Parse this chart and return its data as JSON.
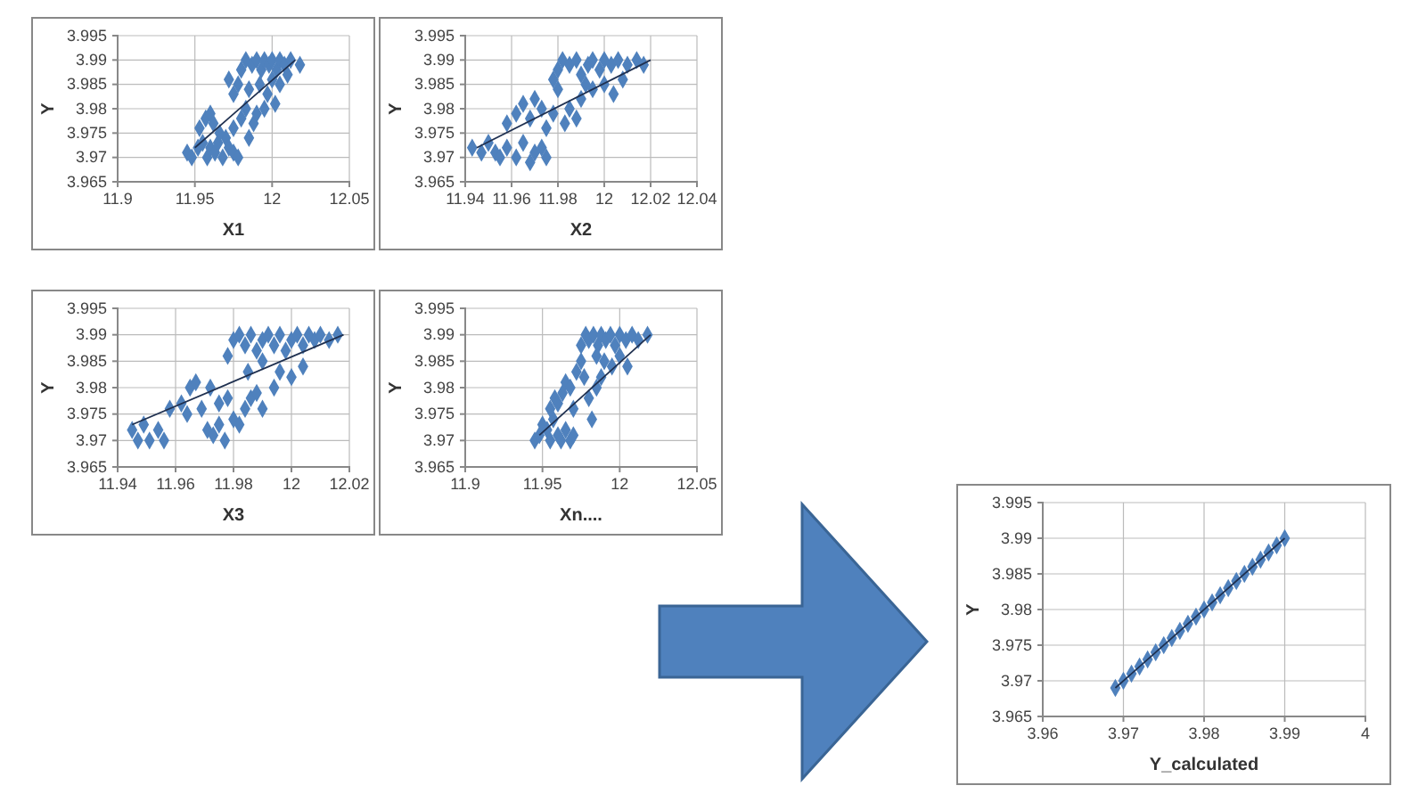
{
  "chart_data": [
    {
      "type": "scatter",
      "xlabel": "X1",
      "ylabel": "Y",
      "xlim": [
        11.9,
        12.05
      ],
      "xticks": [
        11.9,
        11.95,
        12,
        12.05
      ],
      "ylim": [
        3.965,
        3.995
      ],
      "yticks": [
        3.965,
        3.97,
        3.975,
        3.98,
        3.985,
        3.99,
        3.995
      ],
      "grid": true,
      "marker": "diamond",
      "series": [
        {
          "color": "#4f81bd",
          "x": [
            11.945,
            11.948,
            11.952,
            11.955,
            11.958,
            11.96,
            11.963,
            11.965,
            11.968,
            11.97,
            11.972,
            11.975,
            11.978,
            11.953,
            11.957,
            11.96,
            11.962,
            11.966,
            11.975,
            11.98,
            11.985,
            11.988,
            11.983,
            11.99,
            11.975,
            11.978,
            11.972,
            11.98,
            11.983,
            11.987,
            11.99,
            11.993,
            11.995,
            11.998,
            12,
            12.003,
            12.005,
            12.008,
            12.012,
            12.018,
            11.985,
            11.992,
            11.997,
            12.002,
            12.005,
            11.995,
            12,
            12.01
          ],
          "values": [
            3.971,
            3.97,
            3.972,
            3.973,
            3.97,
            3.972,
            3.971,
            3.973,
            3.97,
            3.974,
            3.972,
            3.971,
            3.97,
            3.976,
            3.978,
            3.979,
            3.977,
            3.975,
            3.976,
            3.978,
            3.974,
            3.977,
            3.98,
            3.979,
            3.983,
            3.985,
            3.986,
            3.988,
            3.99,
            3.989,
            3.99,
            3.988,
            3.99,
            3.989,
            3.99,
            3.988,
            3.99,
            3.989,
            3.99,
            3.989,
            3.984,
            3.985,
            3.983,
            3.981,
            3.985,
            3.98,
            3.986,
            3.987
          ]
        },
        {
          "type": "line",
          "color": "#1f3050",
          "marker": "none",
          "x": [
            11.95,
            12.015
          ],
          "values": [
            3.972,
            3.99
          ]
        }
      ]
    },
    {
      "type": "scatter",
      "xlabel": "X2",
      "ylabel": "Y",
      "xlim": [
        11.94,
        12.04
      ],
      "xticks": [
        11.94,
        11.96,
        11.98,
        12,
        12.02,
        12.04
      ],
      "ylim": [
        3.965,
        3.995
      ],
      "yticks": [
        3.965,
        3.97,
        3.975,
        3.98,
        3.985,
        3.99,
        3.995
      ],
      "grid": true,
      "marker": "diamond",
      "series": [
        {
          "color": "#4f81bd",
          "x": [
            11.943,
            11.947,
            11.95,
            11.953,
            11.955,
            11.958,
            11.962,
            11.965,
            11.968,
            11.97,
            11.973,
            11.975,
            11.958,
            11.962,
            11.965,
            11.968,
            11.97,
            11.973,
            11.975,
            11.978,
            11.98,
            11.983,
            11.985,
            11.988,
            11.99,
            11.978,
            11.98,
            11.982,
            11.985,
            11.988,
            11.99,
            11.993,
            11.995,
            11.998,
            12,
            12.003,
            12.006,
            12.01,
            12.014,
            12.017,
            11.995,
            12,
            12.004,
            12.008,
            11.992
          ],
          "values": [
            3.972,
            3.971,
            3.973,
            3.971,
            3.97,
            3.972,
            3.97,
            3.973,
            3.969,
            3.971,
            3.972,
            3.97,
            3.977,
            3.979,
            3.981,
            3.978,
            3.982,
            3.98,
            3.976,
            3.979,
            3.984,
            3.977,
            3.98,
            3.978,
            3.982,
            3.986,
            3.988,
            3.99,
            3.989,
            3.99,
            3.987,
            3.989,
            3.99,
            3.988,
            3.99,
            3.989,
            3.99,
            3.989,
            3.99,
            3.989,
            3.984,
            3.985,
            3.983,
            3.986,
            3.985
          ]
        },
        {
          "type": "line",
          "color": "#1f3050",
          "marker": "none",
          "x": [
            11.945,
            12.02
          ],
          "values": [
            3.972,
            3.99
          ]
        }
      ]
    },
    {
      "type": "scatter",
      "xlabel": "X3",
      "ylabel": "Y",
      "xlim": [
        11.94,
        12.02
      ],
      "xticks": [
        11.94,
        11.96,
        11.98,
        12,
        12.02
      ],
      "ylim": [
        3.965,
        3.995
      ],
      "yticks": [
        3.965,
        3.97,
        3.975,
        3.98,
        3.985,
        3.99,
        3.995
      ],
      "grid": true,
      "marker": "diamond",
      "series": [
        {
          "color": "#4f81bd",
          "x": [
            11.945,
            11.947,
            11.949,
            11.951,
            11.954,
            11.956,
            11.958,
            11.962,
            11.964,
            11.965,
            11.967,
            11.969,
            11.971,
            11.973,
            11.975,
            11.977,
            11.972,
            11.975,
            11.978,
            11.98,
            11.982,
            11.984,
            11.986,
            11.988,
            11.99,
            11.978,
            11.98,
            11.982,
            11.984,
            11.986,
            11.988,
            11.99,
            11.992,
            11.994,
            11.996,
            11.998,
            12,
            12.002,
            12.004,
            12.006,
            12.008,
            12.01,
            12.013,
            12.016,
            11.994,
            11.996,
            12,
            12.004,
            11.985,
            11.99
          ],
          "values": [
            3.972,
            3.97,
            3.973,
            3.97,
            3.972,
            3.97,
            3.976,
            3.977,
            3.975,
            3.98,
            3.981,
            3.976,
            3.972,
            3.971,
            3.973,
            3.97,
            3.98,
            3.977,
            3.978,
            3.974,
            3.973,
            3.976,
            3.978,
            3.979,
            3.976,
            3.986,
            3.989,
            3.99,
            3.988,
            3.99,
            3.987,
            3.989,
            3.99,
            3.988,
            3.99,
            3.987,
            3.989,
            3.99,
            3.988,
            3.99,
            3.989,
            3.99,
            3.989,
            3.99,
            3.98,
            3.983,
            3.982,
            3.984,
            3.983,
            3.985
          ]
        },
        {
          "type": "line",
          "color": "#1f3050",
          "marker": "none",
          "x": [
            11.945,
            12.018
          ],
          "values": [
            3.973,
            3.99
          ]
        }
      ]
    },
    {
      "type": "scatter",
      "xlabel": "Xn....",
      "ylabel": "Y",
      "xlim": [
        11.9,
        12.05
      ],
      "xticks": [
        11.9,
        11.95,
        12,
        12.05
      ],
      "ylim": [
        3.965,
        3.995
      ],
      "yticks": [
        3.965,
        3.97,
        3.975,
        3.98,
        3.985,
        3.99,
        3.995
      ],
      "grid": true,
      "marker": "diamond",
      "series": [
        {
          "color": "#4f81bd",
          "x": [
            11.945,
            11.948,
            11.95,
            11.953,
            11.955,
            11.957,
            11.96,
            11.962,
            11.965,
            11.968,
            11.97,
            11.955,
            11.958,
            11.96,
            11.963,
            11.965,
            11.968,
            11.97,
            11.972,
            11.975,
            11.977,
            11.98,
            11.982,
            11.985,
            11.988,
            11.975,
            11.978,
            11.98,
            11.983,
            11.986,
            11.988,
            11.991,
            11.994,
            11.997,
            12,
            12.004,
            12.008,
            12.012,
            12.018,
            11.99,
            11.995,
            12,
            12.005,
            11.985
          ],
          "values": [
            3.97,
            3.971,
            3.973,
            3.972,
            3.97,
            3.974,
            3.971,
            3.97,
            3.972,
            3.97,
            3.971,
            3.976,
            3.978,
            3.977,
            3.979,
            3.981,
            3.98,
            3.976,
            3.983,
            3.985,
            3.982,
            3.978,
            3.974,
            3.98,
            3.982,
            3.988,
            3.99,
            3.989,
            3.99,
            3.988,
            3.99,
            3.989,
            3.99,
            3.988,
            3.99,
            3.989,
            3.99,
            3.989,
            3.99,
            3.985,
            3.984,
            3.986,
            3.984,
            3.986
          ]
        },
        {
          "type": "line",
          "color": "#1f3050",
          "marker": "none",
          "x": [
            11.948,
            12.02
          ],
          "values": [
            3.971,
            3.99
          ]
        }
      ]
    },
    {
      "type": "scatter",
      "xlabel": "Y_calculated",
      "ylabel": "Y",
      "xlim": [
        3.96,
        4
      ],
      "xticks": [
        3.96,
        3.97,
        3.98,
        3.99,
        4
      ],
      "ylim": [
        3.965,
        3.995
      ],
      "yticks": [
        3.965,
        3.97,
        3.975,
        3.98,
        3.985,
        3.99,
        3.995
      ],
      "grid": true,
      "marker": "diamond",
      "series": [
        {
          "color": "#4f81bd",
          "x": [
            3.969,
            3.97,
            3.971,
            3.972,
            3.973,
            3.974,
            3.975,
            3.976,
            3.977,
            3.978,
            3.979,
            3.98,
            3.981,
            3.982,
            3.983,
            3.984,
            3.985,
            3.986,
            3.987,
            3.988,
            3.989,
            3.99
          ],
          "values": [
            3.969,
            3.97,
            3.971,
            3.972,
            3.973,
            3.974,
            3.975,
            3.976,
            3.977,
            3.978,
            3.979,
            3.98,
            3.981,
            3.982,
            3.983,
            3.984,
            3.985,
            3.986,
            3.987,
            3.988,
            3.989,
            3.99
          ]
        },
        {
          "type": "line",
          "color": "#1f3050",
          "marker": "none",
          "x": [
            3.969,
            3.99
          ],
          "values": [
            3.969,
            3.99
          ]
        }
      ]
    }
  ]
}
